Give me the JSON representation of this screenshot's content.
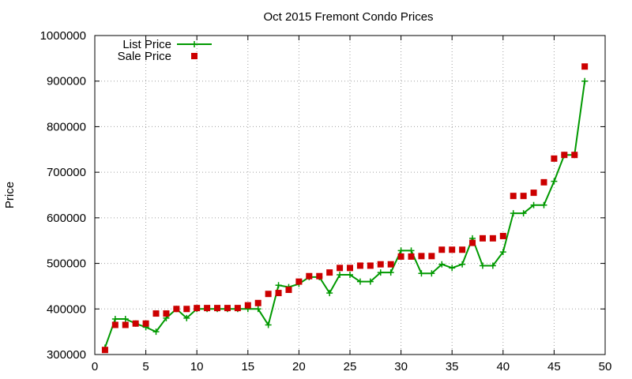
{
  "chart_data": {
    "type": "line",
    "title": "Oct 2015 Fremont Condo Prices",
    "xlabel": "",
    "ylabel": "Price",
    "xlim": [
      0,
      50
    ],
    "ylim": [
      300000,
      1000000
    ],
    "xticks": [
      0,
      5,
      10,
      15,
      20,
      25,
      30,
      35,
      40,
      45,
      50
    ],
    "yticks": [
      300000,
      400000,
      500000,
      600000,
      700000,
      800000,
      900000,
      1000000
    ],
    "grid": true,
    "legend_position": "top-left",
    "x": [
      1,
      2,
      3,
      4,
      5,
      6,
      7,
      8,
      9,
      10,
      11,
      12,
      13,
      14,
      15,
      16,
      17,
      18,
      19,
      20,
      21,
      22,
      23,
      24,
      25,
      26,
      27,
      28,
      29,
      30,
      31,
      32,
      33,
      34,
      35,
      36,
      37,
      38,
      39,
      40,
      41,
      42,
      43,
      44,
      45,
      46,
      47,
      48
    ],
    "series": [
      {
        "name": "List Price",
        "style": "line-plus",
        "color": "#009900",
        "values": [
          315000,
          378000,
          378000,
          368000,
          360000,
          350000,
          380000,
          400000,
          380000,
          400000,
          400000,
          400000,
          400000,
          400000,
          400000,
          400000,
          365000,
          452000,
          448000,
          455000,
          470000,
          470000,
          435000,
          475000,
          475000,
          460000,
          460000,
          480000,
          480000,
          528000,
          528000,
          478000,
          478000,
          498000,
          490000,
          498000,
          555000,
          495000,
          495000,
          525000,
          610000,
          610000,
          628000,
          628000,
          680000,
          738000,
          738000,
          900000
        ]
      },
      {
        "name": "Sale Price",
        "style": "points-square",
        "color": "#cc0000",
        "values": [
          310000,
          365000,
          365000,
          368000,
          368000,
          390000,
          390000,
          400000,
          400000,
          402000,
          402000,
          402000,
          402000,
          402000,
          408000,
          413000,
          433000,
          435000,
          442000,
          460000,
          472000,
          472000,
          480000,
          490000,
          490000,
          495000,
          495000,
          498000,
          498000,
          515000,
          515000,
          516000,
          516000,
          530000,
          530000,
          530000,
          545000,
          555000,
          555000,
          560000,
          648000,
          648000,
          655000,
          678000,
          730000,
          738000,
          738000,
          932000
        ]
      }
    ]
  }
}
